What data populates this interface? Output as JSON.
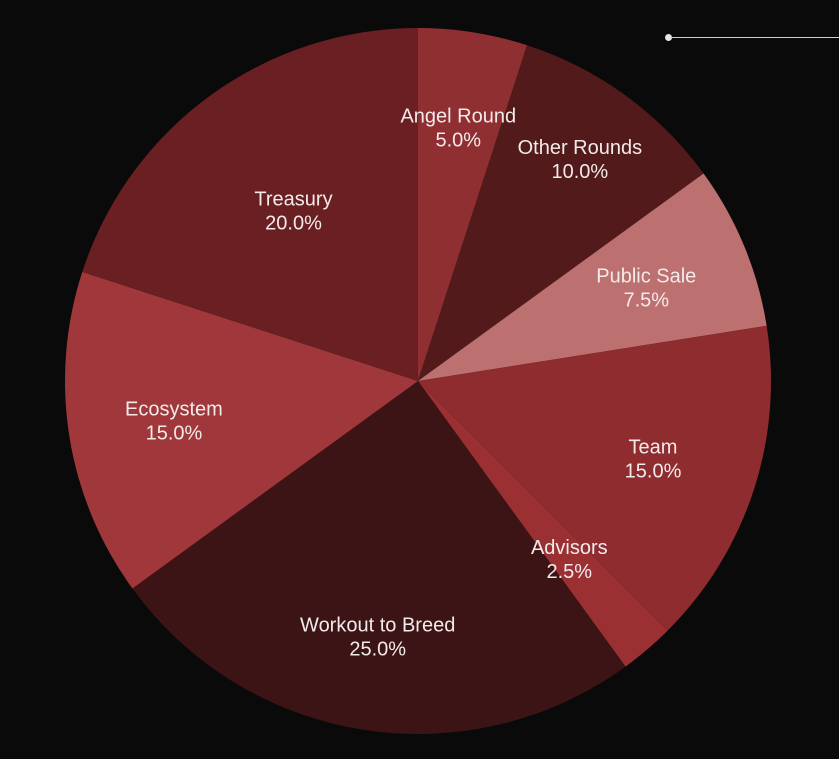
{
  "chart_data": {
    "type": "pie",
    "start_angle_deg": 0,
    "direction": "clockwise",
    "slices": [
      {
        "label": "Angel Round",
        "value": 5.0,
        "display": "5.0%",
        "color": "#8f2f32"
      },
      {
        "label": "Other Rounds",
        "value": 10.0,
        "display": "10.0%",
        "color": "#521a1b"
      },
      {
        "label": "Public Sale",
        "value": 7.5,
        "display": "7.5%",
        "color": "#bd7070"
      },
      {
        "label": "Team",
        "value": 15.0,
        "display": "15.0%",
        "color": "#8e2c2f"
      },
      {
        "label": "Advisors",
        "value": 2.5,
        "display": "2.5%",
        "color": "#9b3033"
      },
      {
        "label": "Workout to Breed",
        "value": 25.0,
        "display": "25.0%",
        "color": "#3c1415"
      },
      {
        "label": "Ecosystem",
        "value": 15.0,
        "display": "15.0%",
        "color": "#a0383b"
      },
      {
        "label": "Treasury",
        "value": 20.0,
        "display": "20.0%",
        "color": "#6a2022"
      }
    ]
  }
}
